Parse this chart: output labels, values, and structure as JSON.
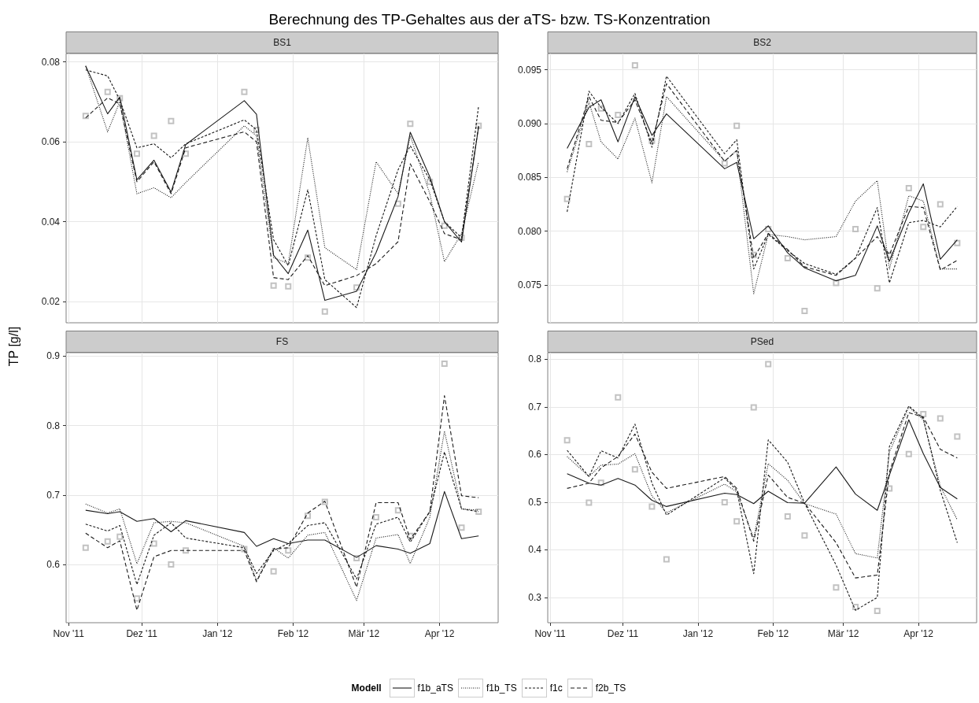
{
  "chart_data": [
    {
      "type": "line",
      "title": "Berechnung des TP-Gehaltes aus der aTS- bzw. TS-Konzentration",
      "subtitle": "BS1",
      "ylabel": "TP [g/l]",
      "legend_title": "Modell",
      "legend": "bottom",
      "grid": true,
      "marker": "none",
      "tick_labels": "y",
      "x": [
        "2011-11-08",
        "2011-11-17",
        "2011-11-22",
        "2011-11-29",
        "2011-12-06",
        "2011-12-13",
        "2011-12-19",
        "2012-01-12",
        "2012-01-17",
        "2012-01-24",
        "2012-01-30",
        "2012-02-07",
        "2012-02-14",
        "2012-02-27",
        "2012-03-06",
        "2012-03-15",
        "2012-03-20",
        "2012-03-28",
        "2012-04-03",
        "2012-04-10",
        "2012-04-17"
      ],
      "xlim": [
        "2011-10-31",
        "2012-04-25"
      ],
      "xticks": [
        {
          "value": "2011-11-01",
          "label": null
        },
        {
          "value": "2011-12-01",
          "label": null
        },
        {
          "value": "2012-01-01",
          "label": null
        },
        {
          "value": "2012-02-01",
          "label": null
        },
        {
          "value": "2012-03-01",
          "label": null
        },
        {
          "value": "2012-04-01",
          "label": null
        }
      ],
      "ylim": [
        0.0147,
        0.0821
      ],
      "yticks": [
        0.02,
        0.04,
        0.06,
        0.08
      ],
      "series": [
        {
          "name": "f1b_aTS",
          "color": "#1a1a1a",
          "line_style": "solid",
          "values": [
            0.079,
            0.067,
            0.0712,
            0.0505,
            0.0554,
            0.0474,
            0.0593,
            0.0703,
            0.0669,
            0.0316,
            0.027,
            0.0379,
            0.0203,
            0.0226,
            0.0323,
            0.0463,
            0.0624,
            0.0512,
            0.04,
            0.0349,
            0.0638
          ]
        },
        {
          "name": "f1b_TS",
          "color": "#1a1a1a",
          "line_style": "dotted",
          "values": [
            0.079,
            0.0625,
            0.07,
            0.047,
            0.0485,
            0.046,
            0.0498,
            0.064,
            0.0615,
            0.031,
            0.0295,
            0.061,
            0.0335,
            0.028,
            0.055,
            0.047,
            0.0615,
            0.047,
            0.03,
            0.037,
            0.055
          ]
        },
        {
          "name": "f1c",
          "color": "#1a1a1a",
          "line_style": "dashed",
          "values": [
            0.078,
            0.0765,
            0.0705,
            0.0585,
            0.0595,
            0.056,
            0.0595,
            0.0655,
            0.063,
            0.0355,
            0.029,
            0.048,
            0.0255,
            0.0185,
            0.0365,
            0.053,
            0.059,
            0.0505,
            0.04,
            0.036,
            0.069
          ]
        },
        {
          "name": "f2b_TS",
          "color": "#1a1a1a",
          "line_style": "dashed",
          "values": [
            0.066,
            0.071,
            0.0695,
            0.05,
            0.055,
            0.047,
            0.0585,
            0.0625,
            0.06,
            0.026,
            0.0255,
            0.0315,
            0.024,
            0.0265,
            0.0295,
            0.035,
            0.0545,
            0.045,
            0.037,
            0.0355,
            0.064
          ]
        },
        {
          "type": "scatter",
          "marker": "square",
          "color": "#b3b3b3",
          "values": [
            0.0665,
            0.0725,
            0.0709,
            0.057,
            0.0615,
            0.0652,
            0.057,
            0.0725,
            0.063,
            0.024,
            0.0238,
            0.031,
            0.0175,
            0.0235,
            null,
            0.0445,
            0.0645,
            0.05,
            0.039,
            0.036,
            0.064
          ]
        }
      ]
    },
    {
      "type": "line",
      "subtitle": "BS2",
      "grid": true,
      "marker": "none",
      "tick_labels": "y",
      "x": [
        "2011-11-08",
        "2011-11-17",
        "2011-11-22",
        "2011-11-29",
        "2011-12-06",
        "2011-12-13",
        "2011-12-19",
        "2012-01-12",
        "2012-01-17",
        "2012-01-24",
        "2012-01-30",
        "2012-02-07",
        "2012-02-14",
        "2012-02-27",
        "2012-03-06",
        "2012-03-15",
        "2012-03-20",
        "2012-03-28",
        "2012-04-03",
        "2012-04-10",
        "2012-04-17"
      ],
      "xlim": [
        "2011-10-31",
        "2012-04-25"
      ],
      "xticks": [
        {
          "value": "2011-11-01",
          "label": null
        },
        {
          "value": "2011-12-01",
          "label": null
        },
        {
          "value": "2012-01-01",
          "label": null
        },
        {
          "value": "2012-02-01",
          "label": null
        },
        {
          "value": "2012-03-01",
          "label": null
        },
        {
          "value": "2012-04-01",
          "label": null
        }
      ],
      "ylim": [
        0.0715,
        0.0965
      ],
      "yticks": [
        0.075,
        {
          "value": 0.08,
          "label": "0.080"
        },
        0.085,
        {
          "value": 0.09,
          "label": "0.090"
        },
        0.095
      ],
      "series": [
        {
          "name": "f1b_aTS",
          "color": "#1a1a1a",
          "line_style": "solid",
          "values": [
            0.0877,
            0.0915,
            0.0922,
            0.0883,
            0.0925,
            0.0889,
            0.0909,
            0.0858,
            0.0864,
            0.0793,
            0.0805,
            0.078,
            0.0766,
            0.0754,
            0.0759,
            0.0805,
            0.0772,
            0.0817,
            0.0844,
            0.0774,
            0.0792
          ]
        },
        {
          "name": "f1b_TS",
          "color": "#1a1a1a",
          "line_style": "dotted",
          "values": [
            0.0855,
            0.092,
            0.0883,
            0.0867,
            0.0905,
            0.0845,
            0.0925,
            0.0865,
            0.0875,
            0.0742,
            0.0797,
            0.0795,
            0.0792,
            0.0795,
            0.0828,
            0.0847,
            0.0765,
            0.0833,
            0.0828,
            0.0765,
            0.0765
          ]
        },
        {
          "name": "f1c",
          "color": "#1a1a1a",
          "line_style": "dashed",
          "values": [
            0.0818,
            0.093,
            0.0915,
            0.09,
            0.0928,
            0.0878,
            0.0944,
            0.0872,
            0.0885,
            0.0765,
            0.0797,
            0.0782,
            0.077,
            0.076,
            0.0775,
            0.0822,
            0.0752,
            0.0808,
            0.081,
            0.0804,
            0.0823
          ]
        },
        {
          "name": "f2b_TS",
          "color": "#1a1a1a",
          "line_style": "dashed",
          "values": [
            0.0858,
            0.0925,
            0.0903,
            0.0901,
            0.0922,
            0.0882,
            0.0937,
            0.0865,
            0.0875,
            0.0775,
            0.0798,
            0.0783,
            0.0767,
            0.0759,
            0.0775,
            0.0795,
            0.0778,
            0.0823,
            0.0822,
            0.0764,
            0.0773
          ]
        },
        {
          "type": "scatter",
          "marker": "square",
          "color": "#b3b3b3",
          "values": [
            0.083,
            0.0881,
            0.0914,
            0.0908,
            0.0954,
            0.0884,
            null,
            0.0863,
            0.0898,
            0.0778,
            0.0802,
            0.0775,
            0.0726,
            0.0752,
            0.0802,
            0.0747,
            0.0778,
            0.084,
            0.0804,
            0.0825,
            0.0789
          ]
        }
      ]
    },
    {
      "type": "line",
      "subtitle": "FS",
      "grid": true,
      "marker": "none",
      "x": [
        "2011-11-08",
        "2011-11-17",
        "2011-11-22",
        "2011-11-29",
        "2011-12-06",
        "2011-12-13",
        "2011-12-19",
        "2012-01-12",
        "2012-01-17",
        "2012-01-24",
        "2012-01-30",
        "2012-02-07",
        "2012-02-14",
        "2012-02-27",
        "2012-03-06",
        "2012-03-15",
        "2012-03-20",
        "2012-03-28",
        "2012-04-03",
        "2012-04-10",
        "2012-04-17"
      ],
      "xlim": [
        "2011-10-31",
        "2012-04-25"
      ],
      "xticks": [
        {
          "value": "2011-11-01",
          "label": "Nov '11"
        },
        {
          "value": "2011-12-01",
          "label": "Dez '11"
        },
        {
          "value": "2012-01-01",
          "label": "Jan '12"
        },
        {
          "value": "2012-02-01",
          "label": "Feb '12"
        },
        {
          "value": "2012-03-01",
          "label": "Mär '12"
        },
        {
          "value": "2012-04-01",
          "label": "Apr '12"
        }
      ],
      "ylim": [
        0.516,
        0.905
      ],
      "yticks": [
        0.6,
        0.7,
        0.8,
        0.9
      ],
      "series": [
        {
          "name": "f1b_aTS",
          "color": "#1a1a1a",
          "line_style": "solid",
          "values": [
            0.678,
            0.673,
            0.676,
            0.662,
            0.666,
            0.647,
            0.663,
            0.646,
            0.626,
            0.637,
            0.63,
            0.635,
            0.635,
            0.61,
            0.627,
            0.622,
            0.616,
            0.63,
            0.705,
            0.637,
            0.641
          ]
        },
        {
          "name": "f1b_TS",
          "color": "#1a1a1a",
          "line_style": "dotted",
          "values": [
            0.687,
            0.674,
            0.68,
            0.601,
            0.66,
            0.662,
            0.66,
            0.626,
            0.577,
            0.624,
            0.609,
            0.642,
            0.646,
            0.548,
            0.638,
            0.643,
            0.601,
            0.668,
            0.792,
            0.68,
            0.678
          ]
        },
        {
          "name": "f1c",
          "color": "#1a1a1a",
          "line_style": "dashed",
          "values": [
            0.658,
            0.648,
            0.656,
            0.571,
            0.642,
            0.66,
            0.638,
            0.624,
            0.587,
            0.62,
            0.63,
            0.656,
            0.66,
            0.579,
            0.658,
            0.668,
            0.632,
            0.676,
            0.762,
            0.68,
            0.676
          ]
        },
        {
          "name": "f2b_TS",
          "color": "#1a1a1a",
          "line_style": "dashed",
          "values": [
            0.645,
            0.624,
            0.634,
            0.534,
            0.611,
            0.62,
            0.62,
            0.62,
            0.575,
            0.622,
            0.624,
            0.674,
            0.691,
            0.567,
            0.689,
            0.689,
            0.636,
            0.676,
            0.843,
            0.699,
            0.696
          ]
        },
        {
          "type": "scatter",
          "marker": "square",
          "color": "#b3b3b3",
          "values": [
            0.624,
            0.633,
            0.64,
            0.551,
            0.63,
            0.6,
            0.62,
            0.622,
            null,
            0.59,
            0.62,
            0.67,
            0.69,
            0.609,
            0.668,
            0.678,
            0.641,
            null,
            0.889,
            0.653,
            0.676
          ]
        }
      ]
    },
    {
      "type": "line",
      "subtitle": "PSed",
      "grid": true,
      "marker": "none",
      "x": [
        "2011-11-08",
        "2011-11-17",
        "2011-11-22",
        "2011-11-29",
        "2011-12-06",
        "2011-12-13",
        "2011-12-19",
        "2012-01-12",
        "2012-01-17",
        "2012-01-24",
        "2012-01-30",
        "2012-02-07",
        "2012-02-14",
        "2012-02-27",
        "2012-03-06",
        "2012-03-15",
        "2012-03-20",
        "2012-03-28",
        "2012-04-03",
        "2012-04-10",
        "2012-04-17"
      ],
      "xlim": [
        "2011-10-31",
        "2012-04-25"
      ],
      "xticks": [
        {
          "value": "2011-11-01",
          "label": "Nov '11"
        },
        {
          "value": "2011-12-01",
          "label": "Dez '11"
        },
        {
          "value": "2012-01-01",
          "label": "Jan '12"
        },
        {
          "value": "2012-02-01",
          "label": "Feb '12"
        },
        {
          "value": "2012-03-01",
          "label": "Mär '12"
        },
        {
          "value": "2012-04-01",
          "label": "Apr '12"
        }
      ],
      "ylim": [
        0.247,
        0.814
      ],
      "yticks": [
        0.3,
        0.4,
        0.5,
        0.6,
        0.7,
        0.8
      ],
      "series": [
        {
          "name": "f1b_aTS",
          "color": "#1a1a1a",
          "line_style": "solid",
          "values": [
            0.56,
            0.54,
            0.536,
            0.55,
            0.536,
            0.504,
            0.491,
            0.519,
            0.516,
            0.497,
            0.523,
            0.499,
            0.498,
            0.574,
            0.517,
            0.483,
            0.557,
            0.673,
            0.602,
            0.531,
            0.507
          ]
        },
        {
          "name": "f1b_TS",
          "color": "#1a1a1a",
          "line_style": "dotted",
          "values": [
            0.596,
            0.554,
            0.578,
            0.58,
            0.602,
            0.513,
            0.478,
            0.538,
            0.522,
            0.424,
            0.581,
            0.546,
            0.497,
            0.475,
            0.392,
            0.383,
            0.605,
            0.7,
            0.673,
            0.534,
            0.463
          ]
        },
        {
          "name": "f1c",
          "color": "#1a1a1a",
          "line_style": "dashed",
          "values": [
            0.609,
            0.554,
            0.608,
            0.593,
            0.664,
            0.54,
            0.473,
            0.551,
            0.525,
            0.35,
            0.631,
            0.584,
            0.498,
            0.368,
            0.273,
            0.3,
            0.617,
            0.702,
            0.676,
            0.525,
            0.415
          ]
        },
        {
          "name": "f2b_TS",
          "color": "#1a1a1a",
          "line_style": "dashed",
          "values": [
            0.529,
            0.54,
            0.572,
            0.596,
            0.643,
            0.563,
            0.529,
            0.554,
            0.529,
            0.418,
            0.557,
            0.51,
            0.498,
            0.415,
            0.341,
            0.347,
            0.563,
            0.688,
            0.679,
            0.611,
            0.593
          ]
        },
        {
          "type": "scatter",
          "marker": "square",
          "color": "#b3b3b3",
          "values": [
            0.63,
            0.499,
            0.541,
            0.72,
            0.569,
            0.491,
            0.38,
            0.5,
            0.46,
            0.699,
            0.79,
            0.47,
            0.43,
            0.321,
            0.28,
            0.272,
            0.529,
            0.601,
            0.685,
            0.676,
            0.638
          ]
        }
      ]
    }
  ]
}
